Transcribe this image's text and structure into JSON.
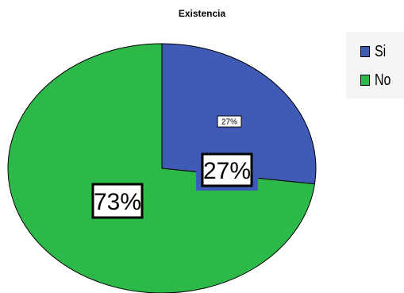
{
  "chart_data": {
    "type": "pie",
    "title": "Existencia",
    "slices": [
      {
        "label": "Si",
        "value": 27,
        "display": "27%",
        "color": "#3f5bb5"
      },
      {
        "label": "No",
        "value": 73,
        "display": "73%",
        "color": "#2db84a"
      }
    ],
    "inner_label": "27%",
    "legend_placement": "top-right"
  }
}
